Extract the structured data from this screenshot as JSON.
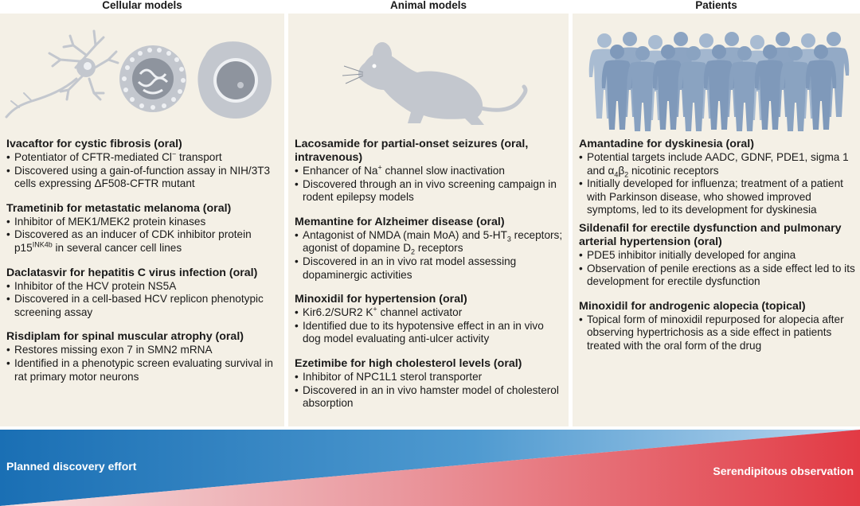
{
  "headers": {
    "cellular": "Cellular models",
    "animal": "Animal models",
    "patients": "Patients"
  },
  "colors": {
    "panel_bg": "#f4f0e6",
    "illustration": "#c3c7ce",
    "patient_fill": "#9eb3cc",
    "blue": "#1a6fb4",
    "red": "#e23a44"
  },
  "cellular": [
    {
      "title": "Ivacaftor for cystic fibrosis (oral)",
      "b1": "Potentiator of CFTR-mediated Cl",
      "b1_sup": "−",
      "b1_end": " transport",
      "b2": "Discovered using a gain-of-function assay in NIH/3T3 cells expressing ΔF508-CFTR mutant"
    },
    {
      "title": "Trametinib for metastatic melanoma (oral)",
      "b1": "Inhibitor of MEK1/MEK2 protein kinases",
      "b2": "Discovered as an inducer of CDK inhibitor protein p15",
      "b2_sup": "INK4b",
      "b2_end": " in several cancer cell lines"
    },
    {
      "title": "Daclatasvir for hepatitis C virus infection (oral)",
      "b1": "Inhibitor of the HCV protein NS5A",
      "b2": "Discovered in a cell-based HCV replicon phenotypic screening assay"
    },
    {
      "title": "Risdiplam for spinal muscular atrophy (oral)",
      "b1": "Restores missing exon 7 in SMN2 mRNA",
      "b2": "Identified in a phenotypic screen evaluating survival in rat primary motor neurons"
    }
  ],
  "animal": [
    {
      "title": "Lacosamide for partial-onset seizures (oral, intravenous)",
      "b1": "Enhancer of Na",
      "b1_sup": "+",
      "b1_end": " channel slow inactivation",
      "b2": "Discovered through an in vivo screening campaign in rodent epilepsy models"
    },
    {
      "title": "Memantine for Alzheimer disease (oral)",
      "b1": "Antagonist of NMDA (main MoA) and 5-HT",
      "b1_sub": "3",
      "b1_mid": " receptors; agonist of dopamine D",
      "b1_sub2": "2",
      "b1_end": " receptors",
      "b2": "Discovered in an in vivo rat model assessing dopaminergic activities"
    },
    {
      "title": "Minoxidil for hypertension (oral)",
      "b1": "Kir6.2/SUR2 K",
      "b1_sup": "+",
      "b1_end": " channel activator",
      "b2": "Identified due to its hypotensive effect in an in vivo dog model evaluating anti-ulcer activity"
    },
    {
      "title": "Ezetimibe for high cholesterol levels (oral)",
      "b1": "Inhibitor of NPC1L1 sterol transporter",
      "b2": "Discovered in an in vivo hamster model of cholesterol absorption"
    }
  ],
  "patients": [
    {
      "title": "Amantadine for dyskinesia (oral)",
      "b1": "Potential targets include AADC, GDNF, PDE1, sigma 1 and α",
      "b1_sub": "4",
      "b1_mid": "β",
      "b1_sub2": "2",
      "b1_end": " nicotinic receptors",
      "b2": "Initially developed for influenza; treatment of a patient with Parkinson disease, who showed improved symptoms, led to its development for dyskinesia"
    },
    {
      "title": "Sildenafil for erectile dysfunction and pulmonary arterial hypertension (oral)",
      "b1": "PDE5 inhibitor initially developed for angina",
      "b2": "Observation of penile erections as a side effect led to its development for erectile dysfunction"
    },
    {
      "title": "Minoxidil for androgenic alopecia (topical)",
      "b1": "Topical form of minoxidil repurposed for alopecia after observing hypertrichosis as a side effect in patients treated with the oral form of the drug"
    }
  ],
  "band": {
    "left_label": "Planned discovery effort",
    "right_label": "Serendipitous observation"
  }
}
